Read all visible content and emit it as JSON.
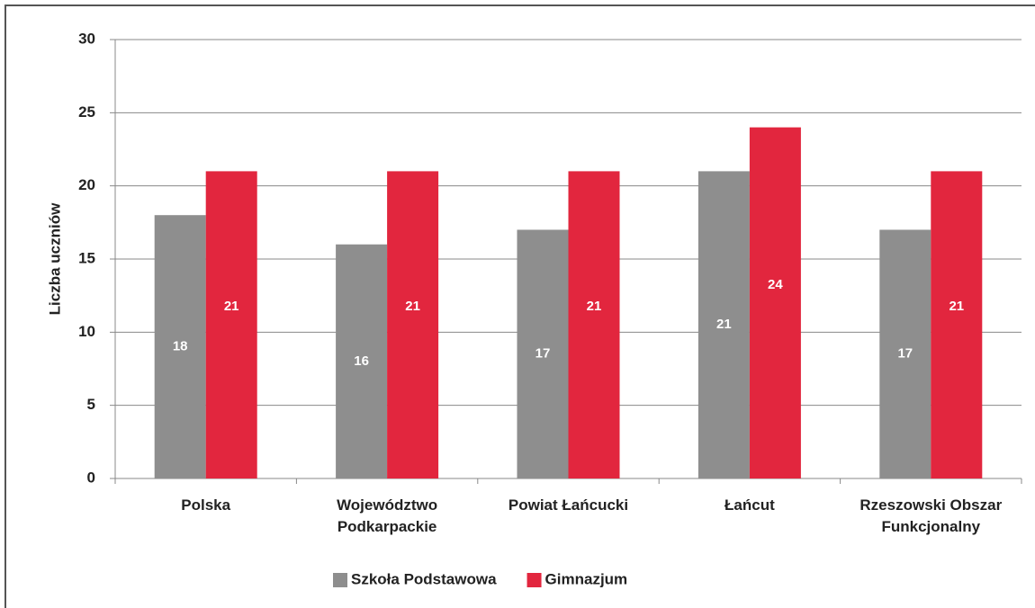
{
  "chart_data": {
    "type": "bar",
    "y_label": "Liczba uczniów",
    "categories": [
      "Polska",
      "Województwo\nPodkarpackie",
      "Powiat Łańcucki",
      "Łańcut",
      "Rzeszowski Obszar\nFunkcjonalny"
    ],
    "series": [
      {
        "name": "Szkoła Podstawowa",
        "color": "#8e8e8e",
        "values": [
          18,
          16,
          17,
          21,
          17
        ]
      },
      {
        "name": "Gimnazjum",
        "color": "#e2263e",
        "values": [
          21,
          21,
          21,
          24,
          21
        ]
      }
    ],
    "ylim": [
      0,
      30
    ],
    "yticks": [
      0,
      5,
      10,
      15,
      20,
      25,
      30
    ],
    "grid": true,
    "legend": "bottom"
  }
}
